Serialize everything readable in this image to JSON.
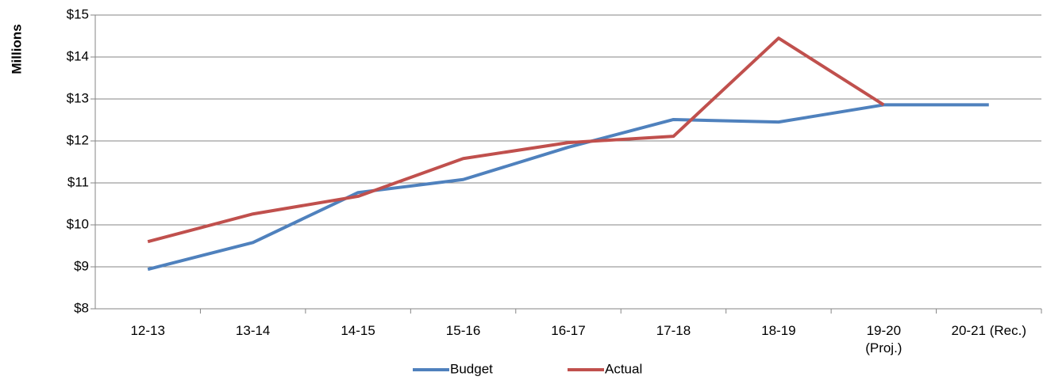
{
  "chart_data": {
    "type": "line",
    "y_label": "Millions",
    "categories": [
      "12-13",
      "13-14",
      "14-15",
      "15-16",
      "16-17",
      "17-18",
      "18-19",
      "19-20\n(Proj.)",
      "20-21 (Rec.)"
    ],
    "series": [
      {
        "name": "Budget",
        "color": "#4f81bd",
        "values": [
          8.94,
          9.58,
          10.77,
          11.08,
          11.85,
          12.51,
          12.45,
          12.86,
          12.86
        ]
      },
      {
        "name": "Actual",
        "color": "#c0504d",
        "values": [
          9.6,
          10.26,
          10.68,
          11.58,
          11.96,
          12.11,
          14.45,
          12.86,
          null
        ]
      }
    ],
    "ylim": [
      8,
      15
    ],
    "yticks": [
      {
        "value": 8,
        "label": "$8"
      },
      {
        "value": 9,
        "label": "$9"
      },
      {
        "value": 10,
        "label": "$10"
      },
      {
        "value": 11,
        "label": "$11"
      },
      {
        "value": 12,
        "label": "$12"
      },
      {
        "value": 13,
        "label": "$13"
      },
      {
        "value": 14,
        "label": "$14"
      },
      {
        "value": 15,
        "label": "$15"
      }
    ],
    "grid": true
  }
}
